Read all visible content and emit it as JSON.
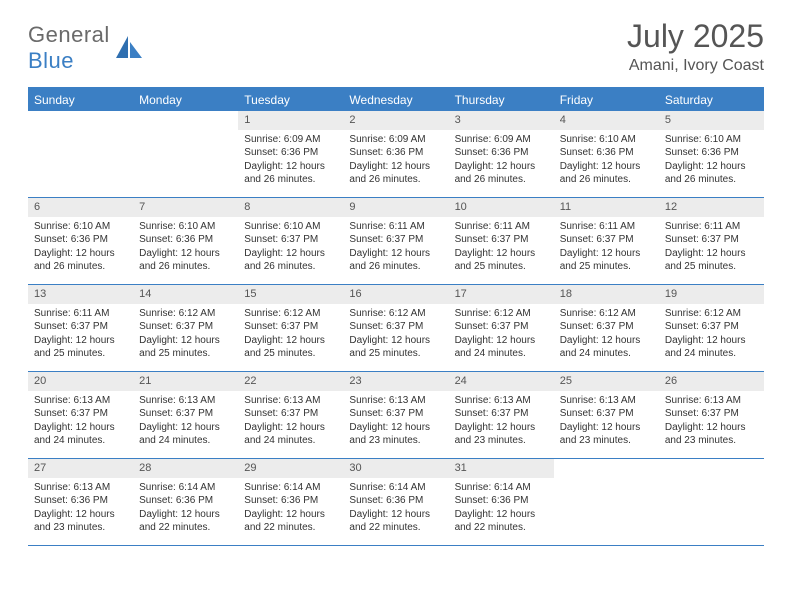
{
  "logo": {
    "text_gray": "General",
    "text_blue": "Blue"
  },
  "title": "July 2025",
  "location": "Amani, Ivory Coast",
  "colors": {
    "header_bar": "#3b7fc4",
    "daynum_bg": "#ececec",
    "text": "#333333",
    "title_text": "#555555"
  },
  "day_names": [
    "Sunday",
    "Monday",
    "Tuesday",
    "Wednesday",
    "Thursday",
    "Friday",
    "Saturday"
  ],
  "weeks": [
    [
      {
        "n": "",
        "sr": "",
        "ss": "",
        "dl": ""
      },
      {
        "n": "",
        "sr": "",
        "ss": "",
        "dl": ""
      },
      {
        "n": "1",
        "sr": "Sunrise: 6:09 AM",
        "ss": "Sunset: 6:36 PM",
        "dl": "Daylight: 12 hours and 26 minutes."
      },
      {
        "n": "2",
        "sr": "Sunrise: 6:09 AM",
        "ss": "Sunset: 6:36 PM",
        "dl": "Daylight: 12 hours and 26 minutes."
      },
      {
        "n": "3",
        "sr": "Sunrise: 6:09 AM",
        "ss": "Sunset: 6:36 PM",
        "dl": "Daylight: 12 hours and 26 minutes."
      },
      {
        "n": "4",
        "sr": "Sunrise: 6:10 AM",
        "ss": "Sunset: 6:36 PM",
        "dl": "Daylight: 12 hours and 26 minutes."
      },
      {
        "n": "5",
        "sr": "Sunrise: 6:10 AM",
        "ss": "Sunset: 6:36 PM",
        "dl": "Daylight: 12 hours and 26 minutes."
      }
    ],
    [
      {
        "n": "6",
        "sr": "Sunrise: 6:10 AM",
        "ss": "Sunset: 6:36 PM",
        "dl": "Daylight: 12 hours and 26 minutes."
      },
      {
        "n": "7",
        "sr": "Sunrise: 6:10 AM",
        "ss": "Sunset: 6:36 PM",
        "dl": "Daylight: 12 hours and 26 minutes."
      },
      {
        "n": "8",
        "sr": "Sunrise: 6:10 AM",
        "ss": "Sunset: 6:37 PM",
        "dl": "Daylight: 12 hours and 26 minutes."
      },
      {
        "n": "9",
        "sr": "Sunrise: 6:11 AM",
        "ss": "Sunset: 6:37 PM",
        "dl": "Daylight: 12 hours and 26 minutes."
      },
      {
        "n": "10",
        "sr": "Sunrise: 6:11 AM",
        "ss": "Sunset: 6:37 PM",
        "dl": "Daylight: 12 hours and 25 minutes."
      },
      {
        "n": "11",
        "sr": "Sunrise: 6:11 AM",
        "ss": "Sunset: 6:37 PM",
        "dl": "Daylight: 12 hours and 25 minutes."
      },
      {
        "n": "12",
        "sr": "Sunrise: 6:11 AM",
        "ss": "Sunset: 6:37 PM",
        "dl": "Daylight: 12 hours and 25 minutes."
      }
    ],
    [
      {
        "n": "13",
        "sr": "Sunrise: 6:11 AM",
        "ss": "Sunset: 6:37 PM",
        "dl": "Daylight: 12 hours and 25 minutes."
      },
      {
        "n": "14",
        "sr": "Sunrise: 6:12 AM",
        "ss": "Sunset: 6:37 PM",
        "dl": "Daylight: 12 hours and 25 minutes."
      },
      {
        "n": "15",
        "sr": "Sunrise: 6:12 AM",
        "ss": "Sunset: 6:37 PM",
        "dl": "Daylight: 12 hours and 25 minutes."
      },
      {
        "n": "16",
        "sr": "Sunrise: 6:12 AM",
        "ss": "Sunset: 6:37 PM",
        "dl": "Daylight: 12 hours and 25 minutes."
      },
      {
        "n": "17",
        "sr": "Sunrise: 6:12 AM",
        "ss": "Sunset: 6:37 PM",
        "dl": "Daylight: 12 hours and 24 minutes."
      },
      {
        "n": "18",
        "sr": "Sunrise: 6:12 AM",
        "ss": "Sunset: 6:37 PM",
        "dl": "Daylight: 12 hours and 24 minutes."
      },
      {
        "n": "19",
        "sr": "Sunrise: 6:12 AM",
        "ss": "Sunset: 6:37 PM",
        "dl": "Daylight: 12 hours and 24 minutes."
      }
    ],
    [
      {
        "n": "20",
        "sr": "Sunrise: 6:13 AM",
        "ss": "Sunset: 6:37 PM",
        "dl": "Daylight: 12 hours and 24 minutes."
      },
      {
        "n": "21",
        "sr": "Sunrise: 6:13 AM",
        "ss": "Sunset: 6:37 PM",
        "dl": "Daylight: 12 hours and 24 minutes."
      },
      {
        "n": "22",
        "sr": "Sunrise: 6:13 AM",
        "ss": "Sunset: 6:37 PM",
        "dl": "Daylight: 12 hours and 24 minutes."
      },
      {
        "n": "23",
        "sr": "Sunrise: 6:13 AM",
        "ss": "Sunset: 6:37 PM",
        "dl": "Daylight: 12 hours and 23 minutes."
      },
      {
        "n": "24",
        "sr": "Sunrise: 6:13 AM",
        "ss": "Sunset: 6:37 PM",
        "dl": "Daylight: 12 hours and 23 minutes."
      },
      {
        "n": "25",
        "sr": "Sunrise: 6:13 AM",
        "ss": "Sunset: 6:37 PM",
        "dl": "Daylight: 12 hours and 23 minutes."
      },
      {
        "n": "26",
        "sr": "Sunrise: 6:13 AM",
        "ss": "Sunset: 6:37 PM",
        "dl": "Daylight: 12 hours and 23 minutes."
      }
    ],
    [
      {
        "n": "27",
        "sr": "Sunrise: 6:13 AM",
        "ss": "Sunset: 6:36 PM",
        "dl": "Daylight: 12 hours and 23 minutes."
      },
      {
        "n": "28",
        "sr": "Sunrise: 6:14 AM",
        "ss": "Sunset: 6:36 PM",
        "dl": "Daylight: 12 hours and 22 minutes."
      },
      {
        "n": "29",
        "sr": "Sunrise: 6:14 AM",
        "ss": "Sunset: 6:36 PM",
        "dl": "Daylight: 12 hours and 22 minutes."
      },
      {
        "n": "30",
        "sr": "Sunrise: 6:14 AM",
        "ss": "Sunset: 6:36 PM",
        "dl": "Daylight: 12 hours and 22 minutes."
      },
      {
        "n": "31",
        "sr": "Sunrise: 6:14 AM",
        "ss": "Sunset: 6:36 PM",
        "dl": "Daylight: 12 hours and 22 minutes."
      },
      {
        "n": "",
        "sr": "",
        "ss": "",
        "dl": ""
      },
      {
        "n": "",
        "sr": "",
        "ss": "",
        "dl": ""
      }
    ]
  ]
}
